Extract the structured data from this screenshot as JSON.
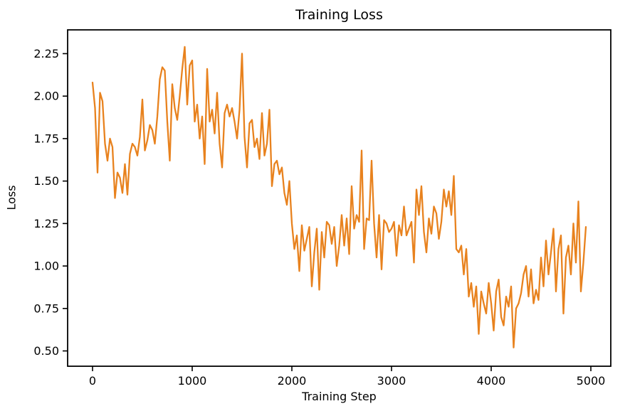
{
  "chart_data": {
    "type": "line",
    "title": "Training Loss",
    "xlabel": "Training Step",
    "ylabel": "Loss",
    "line_color": "#e8821e",
    "axis_color": "#000000",
    "background_color": "#ffffff",
    "grid": false,
    "legend": false,
    "xlim": [
      -250,
      5200
    ],
    "ylim": [
      0.41,
      2.39
    ],
    "x_tick_values": [
      0,
      1000,
      2000,
      3000,
      4000,
      5000
    ],
    "x_tick_labels": [
      "0",
      "1000",
      "2000",
      "3000",
      "4000",
      "5000"
    ],
    "y_tick_values": [
      0.5,
      0.75,
      1.0,
      1.25,
      1.5,
      1.75,
      2.0,
      2.25
    ],
    "y_tick_labels": [
      "0.50",
      "0.75",
      "1.00",
      "1.25",
      "1.50",
      "1.75",
      "2.00",
      "2.25"
    ],
    "x_start": 0,
    "x_interval": 25,
    "series": [
      {
        "name": "training_loss",
        "values": [
          2.08,
          1.93,
          1.55,
          2.02,
          1.97,
          1.72,
          1.62,
          1.75,
          1.7,
          1.4,
          1.55,
          1.52,
          1.43,
          1.6,
          1.42,
          1.66,
          1.72,
          1.7,
          1.65,
          1.76,
          1.98,
          1.68,
          1.74,
          1.83,
          1.8,
          1.72,
          1.88,
          2.1,
          2.17,
          2.15,
          1.85,
          1.62,
          2.07,
          1.93,
          1.86,
          2.0,
          2.16,
          2.29,
          1.95,
          2.18,
          2.21,
          1.85,
          1.95,
          1.75,
          1.88,
          1.6,
          2.16,
          1.85,
          1.92,
          1.78,
          2.02,
          1.72,
          1.58,
          1.9,
          1.95,
          1.88,
          1.93,
          1.85,
          1.75,
          1.92,
          2.25,
          1.76,
          1.58,
          1.84,
          1.86,
          1.7,
          1.75,
          1.63,
          1.9,
          1.65,
          1.72,
          1.92,
          1.47,
          1.6,
          1.62,
          1.54,
          1.58,
          1.43,
          1.36,
          1.5,
          1.25,
          1.1,
          1.18,
          0.97,
          1.24,
          1.09,
          1.16,
          1.23,
          0.88,
          1.08,
          1.22,
          0.86,
          1.2,
          1.05,
          1.26,
          1.24,
          1.13,
          1.23,
          1.0,
          1.12,
          1.3,
          1.12,
          1.28,
          1.07,
          1.47,
          1.22,
          1.3,
          1.26,
          1.68,
          1.1,
          1.28,
          1.27,
          1.62,
          1.25,
          1.05,
          1.3,
          0.98,
          1.27,
          1.25,
          1.2,
          1.22,
          1.26,
          1.06,
          1.24,
          1.18,
          1.35,
          1.18,
          1.22,
          1.26,
          1.02,
          1.45,
          1.3,
          1.47,
          1.2,
          1.08,
          1.28,
          1.19,
          1.35,
          1.31,
          1.16,
          1.26,
          1.45,
          1.35,
          1.44,
          1.3,
          1.53,
          1.1,
          1.08,
          1.12,
          0.95,
          1.1,
          0.82,
          0.9,
          0.76,
          0.88,
          0.6,
          0.85,
          0.78,
          0.72,
          0.9,
          0.78,
          0.62,
          0.85,
          0.92,
          0.7,
          0.65,
          0.82,
          0.76,
          0.88,
          0.52,
          0.75,
          0.78,
          0.84,
          0.95,
          1.0,
          0.82,
          0.98,
          0.78,
          0.86,
          0.8,
          1.05,
          0.88,
          1.15,
          0.95,
          1.08,
          1.22,
          0.85,
          1.1,
          1.18,
          0.72,
          1.05,
          1.12,
          0.95,
          1.25,
          1.02,
          1.38,
          0.85,
          1.02,
          1.23
        ]
      }
    ]
  }
}
